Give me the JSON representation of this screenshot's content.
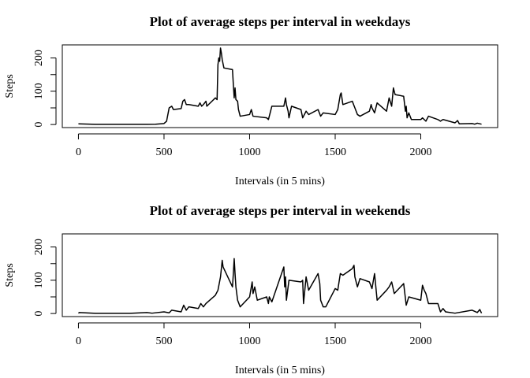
{
  "chart_data": [
    {
      "type": "line",
      "title": "Plot of average steps per interval in weekdays",
      "xlabel": "Intervals (in 5 mins)",
      "ylabel": "Steps",
      "color": "#000000",
      "x": [
        0,
        100,
        200,
        300,
        400,
        450,
        500,
        515,
        530,
        545,
        555,
        600,
        610,
        620,
        630,
        645,
        700,
        710,
        720,
        730,
        745,
        750,
        800,
        810,
        815,
        820,
        825,
        830,
        835,
        840,
        850,
        900,
        905,
        910,
        915,
        920,
        930,
        935,
        945,
        1000,
        1010,
        1020,
        1100,
        1110,
        1130,
        1200,
        1210,
        1215,
        1225,
        1230,
        1245,
        1300,
        1310,
        1330,
        1345,
        1400,
        1415,
        1430,
        1500,
        1515,
        1530,
        1535,
        1545,
        1600,
        1615,
        1630,
        1645,
        1700,
        1710,
        1715,
        1730,
        1745,
        1800,
        1815,
        1830,
        1840,
        1850,
        1900,
        1910,
        1915,
        1920,
        1930,
        1945,
        2000,
        2010,
        2030,
        2045,
        2100,
        2115,
        2130,
        2200,
        2215,
        2225,
        2300,
        2315,
        2330,
        2355
      ],
      "values": [
        2,
        0.5,
        0.5,
        0.5,
        0.5,
        1,
        3,
        10,
        50,
        55,
        45,
        48,
        70,
        75,
        60,
        60,
        55,
        65,
        55,
        60,
        70,
        55,
        80,
        75,
        180,
        200,
        190,
        230,
        215,
        195,
        170,
        165,
        120,
        80,
        110,
        75,
        70,
        45,
        25,
        30,
        45,
        25,
        20,
        15,
        55,
        55,
        80,
        60,
        40,
        20,
        55,
        45,
        20,
        40,
        30,
        45,
        25,
        35,
        30,
        45,
        90,
        95,
        60,
        70,
        50,
        30,
        25,
        40,
        60,
        50,
        35,
        65,
        40,
        80,
        55,
        110,
        90,
        85,
        40,
        55,
        20,
        35,
        15,
        15,
        20,
        10,
        25,
        15,
        10,
        15,
        5,
        12,
        2,
        3,
        1,
        4,
        1
      ],
      "xlim": [
        -94.2,
        2449.2
      ],
      "ylim": [
        -9.2,
        239.4
      ],
      "xticks": [
        0,
        500,
        1000,
        1500,
        2000
      ],
      "yticks": [
        0,
        100,
        200
      ],
      "y_minor_ticks": [
        50,
        150
      ]
    },
    {
      "type": "line",
      "title": "Plot of average steps per interval in weekends",
      "xlabel": "Intervals (in 5 mins)",
      "ylabel": "Steps",
      "color": "#000000",
      "x": [
        0,
        5,
        100,
        200,
        300,
        400,
        430,
        500,
        530,
        545,
        600,
        615,
        630,
        645,
        700,
        715,
        730,
        745,
        800,
        815,
        830,
        835,
        840,
        845,
        900,
        905,
        910,
        915,
        920,
        930,
        945,
        1000,
        1015,
        1020,
        1030,
        1045,
        1100,
        1110,
        1115,
        1130,
        1200,
        1205,
        1210,
        1215,
        1230,
        1300,
        1310,
        1315,
        1330,
        1345,
        1400,
        1410,
        1415,
        1430,
        1445,
        1500,
        1515,
        1530,
        1545,
        1600,
        1610,
        1615,
        1630,
        1645,
        1700,
        1715,
        1730,
        1745,
        1800,
        1815,
        1830,
        1845,
        1900,
        1915,
        1930,
        2000,
        2010,
        2020,
        2030,
        2045,
        2100,
        2115,
        2130,
        2145,
        2200,
        2300,
        2330,
        2345,
        2355
      ],
      "values": [
        1,
        3,
        0.5,
        0.5,
        0.5,
        3,
        1,
        5,
        2,
        10,
        5,
        25,
        10,
        20,
        15,
        30,
        20,
        30,
        55,
        70,
        110,
        135,
        160,
        140,
        80,
        120,
        165,
        120,
        80,
        40,
        20,
        50,
        95,
        60,
        80,
        40,
        50,
        30,
        50,
        35,
        140,
        80,
        110,
        40,
        100,
        95,
        100,
        30,
        110,
        70,
        120,
        90,
        40,
        20,
        20,
        75,
        70,
        120,
        115,
        135,
        145,
        110,
        80,
        105,
        95,
        75,
        120,
        40,
        70,
        80,
        95,
        60,
        90,
        25,
        50,
        40,
        85,
        70,
        60,
        30,
        30,
        5,
        15,
        5,
        1,
        10,
        3,
        12,
        1
      ],
      "xlim": [
        -94.2,
        2449.2
      ],
      "ylim": [
        -9.2,
        239.4
      ],
      "xticks": [
        0,
        500,
        1000,
        1500,
        2000
      ],
      "yticks": [
        0,
        100,
        200
      ],
      "y_minor_ticks": [
        50,
        150
      ]
    }
  ]
}
